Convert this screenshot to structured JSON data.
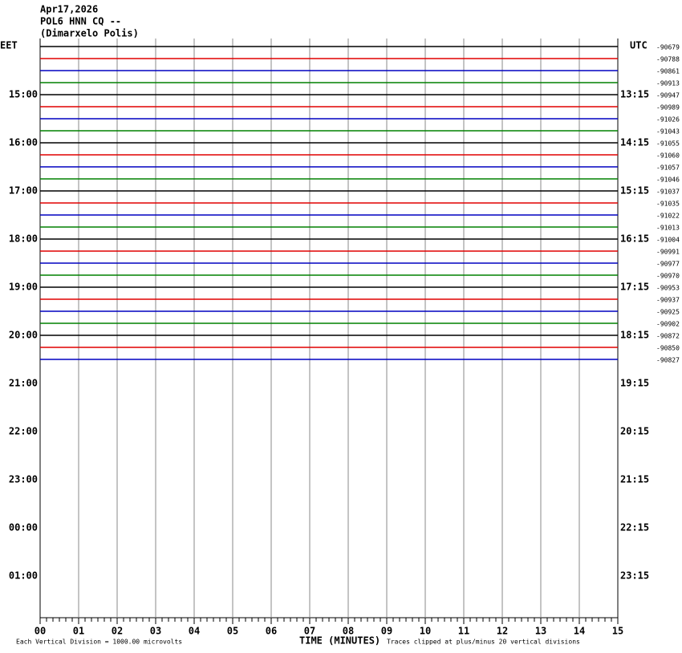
{
  "header": {
    "date": "Apr17,2026",
    "station": "POL6 HNN CQ --",
    "location": "(Dimarxelo Polis)"
  },
  "left_axis": {
    "title": "EET",
    "labels": [
      "15:00",
      "16:00",
      "17:00",
      "18:00",
      "19:00",
      "20:00",
      "21:00",
      "22:00",
      "23:00",
      "00:00",
      "01:00"
    ]
  },
  "right_axis": {
    "title": "UTC",
    "labels": [
      "13:15",
      "14:15",
      "15:15",
      "16:15",
      "17:15",
      "18:15",
      "19:15",
      "20:15",
      "21:15",
      "22:15",
      "23:15"
    ]
  },
  "x_axis": {
    "title": "TIME (MINUTES)",
    "labels": [
      "00",
      "01",
      "02",
      "03",
      "04",
      "05",
      "06",
      "07",
      "08",
      "09",
      "10",
      "11",
      "12",
      "13",
      "14",
      "15"
    ]
  },
  "trace_colors": [
    "#000000",
    "#e00000",
    "#0000c0",
    "#008000"
  ],
  "traces": [
    {
      "offset": -90679
    },
    {
      "offset": -90788
    },
    {
      "offset": -90861
    },
    {
      "offset": -90913
    },
    {
      "offset": -90947
    },
    {
      "offset": -90989
    },
    {
      "offset": -91026
    },
    {
      "offset": -91043
    },
    {
      "offset": -91055
    },
    {
      "offset": -91060
    },
    {
      "offset": -91057
    },
    {
      "offset": -91046
    },
    {
      "offset": -91037
    },
    {
      "offset": -91035
    },
    {
      "offset": -91022
    },
    {
      "offset": -91013
    },
    {
      "offset": -91004
    },
    {
      "offset": -90991
    },
    {
      "offset": -90977
    },
    {
      "offset": -90970
    },
    {
      "offset": -90953
    },
    {
      "offset": -90937
    },
    {
      "offset": -90925
    },
    {
      "offset": -90902
    },
    {
      "offset": -90872
    },
    {
      "offset": -90850
    },
    {
      "offset": -90827
    }
  ],
  "footer": {
    "scale": "Each Vertical Division = 1000.00 microvolts",
    "clip": "Traces clipped at plus/minus 20 vertical divisions"
  }
}
